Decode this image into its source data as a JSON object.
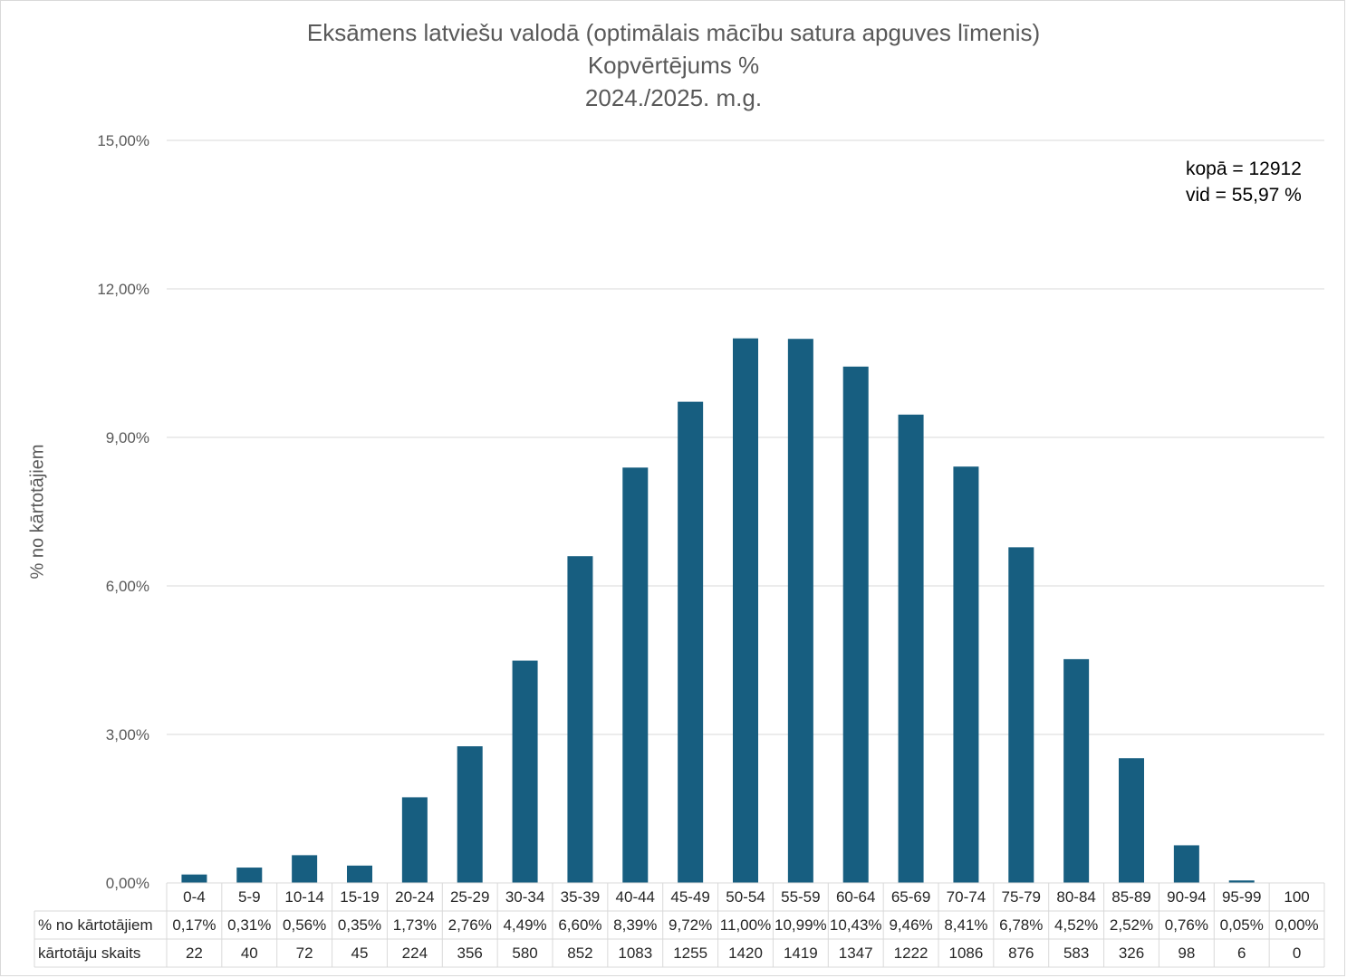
{
  "chart_data": {
    "type": "bar",
    "title": [
      "Eksāmens latviešu valodā (optimālais mācību satura apguves līmenis)",
      "Kopvērtējums %",
      "2024./2025. m.g."
    ],
    "ylabel": "% no kārtotājiem",
    "ylim": [
      0,
      15
    ],
    "yticks": [
      "0,00%",
      "3,00%",
      "6,00%",
      "9,00%",
      "12,00%",
      "15,00%"
    ],
    "grid": true,
    "color": "#175e80",
    "annotation": [
      "kopā = 12912",
      "vid = 55,97 %"
    ],
    "categories": [
      "0-4",
      "5-9",
      "10-14",
      "15-19",
      "20-24",
      "25-29",
      "30-34",
      "35-39",
      "40-44",
      "45-49",
      "50-54",
      "55-59",
      "60-64",
      "65-69",
      "70-74",
      "75-79",
      "80-84",
      "85-89",
      "90-94",
      "95-99",
      "100"
    ],
    "values": [
      0.17,
      0.31,
      0.56,
      0.35,
      1.73,
      2.76,
      4.49,
      6.6,
      8.39,
      9.72,
      11.0,
      10.99,
      10.43,
      9.46,
      8.41,
      6.78,
      4.52,
      2.52,
      0.76,
      0.05,
      0.0
    ],
    "table": {
      "rows": [
        {
          "label": "% no kārtotājiem",
          "cells": [
            "0,17%",
            "0,31%",
            "0,56%",
            "0,35%",
            "1,73%",
            "2,76%",
            "4,49%",
            "6,60%",
            "8,39%",
            "9,72%",
            "11,00%",
            "10,99%",
            "10,43%",
            "9,46%",
            "8,41%",
            "6,78%",
            "4,52%",
            "2,52%",
            "0,76%",
            "0,05%",
            "0,00%"
          ]
        },
        {
          "label": "kārtotāju skaits",
          "cells": [
            "22",
            "40",
            "72",
            "45",
            "224",
            "356",
            "580",
            "852",
            "1083",
            "1255",
            "1420",
            "1419",
            "1347",
            "1222",
            "1086",
            "876",
            "583",
            "326",
            "98",
            "6",
            "0"
          ]
        }
      ]
    }
  }
}
